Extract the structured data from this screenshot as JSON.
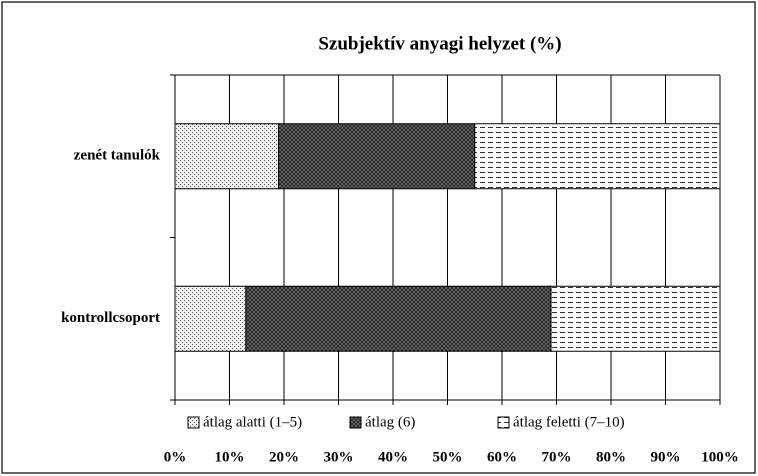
{
  "chart_data": {
    "type": "stacked-bar-horizontal",
    "title": "Szubjektív anyagi helyzet (%)",
    "categories": [
      "zenét tanulók",
      "kontrollcsoport"
    ],
    "series": [
      {
        "name": "átlag alatti (1–5)",
        "color": "#f0f0f0",
        "values": [
          19,
          13
        ]
      },
      {
        "name": "átlag (6)",
        "color": "#6a6a6a",
        "values": [
          36,
          56
        ]
      },
      {
        "name": "átlag feletti (7–10)",
        "color": "#ffffff",
        "values": [
          45,
          31
        ]
      }
    ],
    "xlim": [
      0,
      100
    ],
    "xticks": [
      {
        "value": 0,
        "label": "0%"
      },
      {
        "value": 10,
        "label": "10%"
      },
      {
        "value": 20,
        "label": "20%"
      },
      {
        "value": 30,
        "label": "30%"
      },
      {
        "value": 40,
        "label": "40%"
      },
      {
        "value": 50,
        "label": "50%"
      },
      {
        "value": 60,
        "label": "60%"
      },
      {
        "value": 70,
        "label": "70%"
      },
      {
        "value": 80,
        "label": "80%"
      },
      {
        "value": 90,
        "label": "90%"
      },
      {
        "value": 100,
        "label": "100%"
      }
    ],
    "grid": true
  }
}
